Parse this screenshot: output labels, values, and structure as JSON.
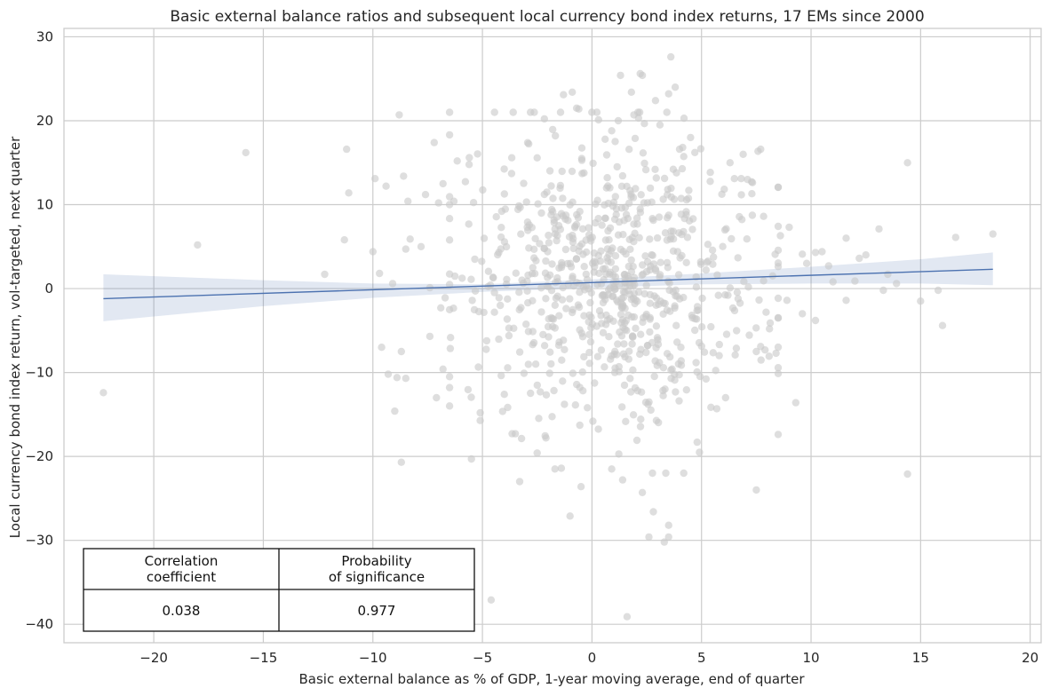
{
  "chart_data": {
    "type": "scatter",
    "title": "Basic external balance ratios and subsequent local currency bond index returns, 17 EMs since 2000",
    "xlabel": "Basic external balance as % of GDP, 1-year moving average, end of quarter",
    "ylabel": "Local currency bond index return, vol-targeted, next quarter",
    "xlim": [
      -24.1,
      20.5
    ],
    "ylim": [
      -42.2,
      31.0
    ],
    "x_ticks": [
      -20,
      -15,
      -10,
      -5,
      0,
      5,
      10,
      15,
      20
    ],
    "y_ticks": [
      -40,
      -30,
      -20,
      -10,
      0,
      10,
      20,
      30
    ],
    "x_tick_labels": [
      "−20",
      "−15",
      "−10",
      "−5",
      "0",
      "5",
      "10",
      "15",
      "20"
    ],
    "y_tick_labels": [
      "−40",
      "−30",
      "−20",
      "−10",
      "0",
      "10",
      "20",
      "30"
    ],
    "grid": true,
    "point_color": "#c8c8c8",
    "line_color": "#4c72b0",
    "band_color": "#4c72b0",
    "regression": {
      "x_range": [
        -22.3,
        18.3
      ],
      "y_start": -1.2,
      "y_end": 2.3,
      "ci_lower": [
        {
          "x": -22.3,
          "y": -3.9
        },
        {
          "x": -15,
          "y": -2.1
        },
        {
          "x": -10,
          "y": -1.1
        },
        {
          "x": -5,
          "y": -0.4
        },
        {
          "x": 0,
          "y": 0.1
        },
        {
          "x": 5,
          "y": 0.5
        },
        {
          "x": 10,
          "y": 0.6
        },
        {
          "x": 15,
          "y": 0.6
        },
        {
          "x": 18.3,
          "y": 0.4
        }
      ],
      "ci_upper": [
        {
          "x": -22.3,
          "y": 1.7
        },
        {
          "x": -15,
          "y": 1.0
        },
        {
          "x": -10,
          "y": 0.6
        },
        {
          "x": -5,
          "y": 0.5
        },
        {
          "x": 0,
          "y": 1.1
        },
        {
          "x": 5,
          "y": 1.8
        },
        {
          "x": 10,
          "y": 2.6
        },
        {
          "x": 15,
          "y": 3.5
        },
        {
          "x": 18.3,
          "y": 4.3
        }
      ]
    },
    "outlier_points": [
      [
        -22.3,
        -12.4
      ],
      [
        -18.0,
        5.2
      ],
      [
        -15.8,
        16.2
      ],
      [
        -12.2,
        1.7
      ],
      [
        -11.2,
        16.6
      ],
      [
        -11.1,
        11.4
      ],
      [
        -11.3,
        5.8
      ],
      [
        -10.0,
        4.4
      ],
      [
        -9.7,
        1.8
      ],
      [
        -9.9,
        13.1
      ],
      [
        -9.4,
        12.2
      ],
      [
        -8.8,
        20.7
      ],
      [
        -8.6,
        13.4
      ],
      [
        -8.4,
        10.4
      ],
      [
        -8.3,
        5.9
      ],
      [
        -8.5,
        4.7
      ],
      [
        -9.1,
        0.6
      ],
      [
        -8.7,
        -20.7
      ],
      [
        -9.0,
        -14.6
      ],
      [
        -9.3,
        -10.2
      ],
      [
        -8.9,
        -10.6
      ],
      [
        -8.5,
        -10.7
      ],
      [
        -8.7,
        -7.5
      ],
      [
        -9.6,
        -7.0
      ],
      [
        -7.6,
        11.2
      ],
      [
        -7.2,
        17.4
      ],
      [
        -6.8,
        12.5
      ],
      [
        -7.0,
        10.2
      ],
      [
        -6.5,
        10.0
      ],
      [
        -6.3,
        10.4
      ],
      [
        -7.8,
        5.0
      ],
      [
        -7.4,
        0.1
      ],
      [
        -6.7,
        -1.1
      ],
      [
        -6.9,
        -2.3
      ],
      [
        -7.4,
        -5.7
      ],
      [
        -6.8,
        -9.6
      ],
      [
        -7.1,
        -13.0
      ],
      [
        -5.6,
        15.6
      ],
      [
        -5.5,
        -20.3
      ],
      [
        -5.1,
        -14.8
      ],
      [
        -3.3,
        -23.0
      ],
      [
        -4.6,
        -37.1
      ],
      [
        -4.0,
        -12.6
      ],
      [
        -3.5,
        -17.3
      ],
      [
        -3.1,
        -10.1
      ],
      [
        -2.5,
        -19.6
      ],
      [
        -2.1,
        -17.8
      ],
      [
        -1.4,
        -21.4
      ],
      [
        -1.3,
        23.1
      ],
      [
        -0.9,
        23.4
      ],
      [
        -0.7,
        21.5
      ],
      [
        -0.5,
        -23.6
      ],
      [
        -1.0,
        -27.1
      ],
      [
        -0.6,
        21.4
      ],
      [
        0.3,
        20.1
      ],
      [
        0.6,
        17.8
      ],
      [
        0.9,
        18.8
      ],
      [
        1.2,
        20.0
      ],
      [
        1.3,
        25.4
      ],
      [
        1.8,
        23.4
      ],
      [
        2.2,
        25.6
      ],
      [
        2.3,
        25.4
      ],
      [
        2.9,
        22.4
      ],
      [
        3.1,
        19.5
      ],
      [
        3.5,
        23.2
      ],
      [
        3.6,
        27.6
      ],
      [
        3.8,
        24.0
      ],
      [
        4.0,
        16.6
      ],
      [
        4.2,
        20.3
      ],
      [
        4.5,
        18.0
      ],
      [
        1.6,
        -39.1
      ],
      [
        2.6,
        -29.6
      ],
      [
        3.3,
        -30.2
      ],
      [
        3.5,
        -29.6
      ],
      [
        3.5,
        -28.2
      ],
      [
        2.8,
        -26.6
      ],
      [
        2.3,
        -24.3
      ],
      [
        1.4,
        -22.8
      ],
      [
        0.9,
        -21.5
      ],
      [
        4.8,
        -18.3
      ],
      [
        6.1,
        -13.0
      ],
      [
        6.3,
        15.0
      ],
      [
        6.5,
        13.1
      ],
      [
        6.9,
        16.0
      ],
      [
        7.1,
        13.0
      ],
      [
        7.3,
        11.3
      ],
      [
        7.7,
        16.6
      ],
      [
        7.5,
        -24.0
      ],
      [
        7.5,
        -7.5
      ],
      [
        7.7,
        -6.9
      ],
      [
        8.1,
        -4.8
      ],
      [
        8.4,
        -7.7
      ],
      [
        8.6,
        6.3
      ],
      [
        9.0,
        7.3
      ],
      [
        9.3,
        -13.6
      ],
      [
        9.6,
        4.1
      ],
      [
        9.8,
        3.0
      ],
      [
        10.2,
        4.3
      ],
      [
        10.5,
        4.4
      ],
      [
        10.8,
        2.7
      ],
      [
        11.6,
        6.0
      ],
      [
        11.6,
        -1.4
      ],
      [
        12.2,
        3.6
      ],
      [
        12.5,
        4.0
      ],
      [
        13.1,
        7.1
      ],
      [
        13.3,
        -0.2
      ],
      [
        13.5,
        1.7
      ],
      [
        13.9,
        0.6
      ],
      [
        14.4,
        15.0
      ],
      [
        14.4,
        -22.1
      ],
      [
        15.0,
        -1.5
      ],
      [
        15.8,
        -0.2
      ],
      [
        16.0,
        -4.4
      ],
      [
        16.6,
        6.1
      ],
      [
        18.3,
        6.5
      ],
      [
        10.2,
        -3.8
      ],
      [
        9.6,
        -3.0
      ],
      [
        11.0,
        0.8
      ],
      [
        12.0,
        0.9
      ],
      [
        8.9,
        -1.4
      ]
    ],
    "cluster": {
      "seed": 20240517,
      "count": 760,
      "x_center": 1.0,
      "x_spread": 3.4,
      "y_center": 1.0,
      "y_spread": 8.2
    },
    "stats_table": {
      "headers": [
        "Correlation\ncoefficient",
        "Probability\nof significance"
      ],
      "values": [
        "0.038",
        "0.977"
      ]
    }
  }
}
